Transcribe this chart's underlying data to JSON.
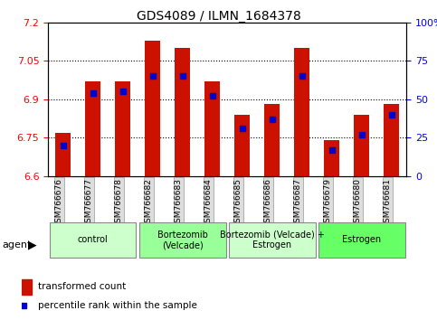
{
  "title": "GDS4089 / ILMN_1684378",
  "samples": [
    "GSM766676",
    "GSM766677",
    "GSM766678",
    "GSM766682",
    "GSM766683",
    "GSM766684",
    "GSM766685",
    "GSM766686",
    "GSM766687",
    "GSM766679",
    "GSM766680",
    "GSM766681"
  ],
  "red_values": [
    6.77,
    6.97,
    6.97,
    7.13,
    7.1,
    6.97,
    6.84,
    6.88,
    7.1,
    6.74,
    6.84,
    6.88
  ],
  "blue_percentiles": [
    20,
    54,
    55,
    65,
    65,
    52,
    31,
    37,
    65,
    17,
    27,
    40
  ],
  "y_min": 6.6,
  "y_max": 7.2,
  "y_ticks": [
    6.6,
    6.75,
    6.9,
    7.05,
    7.2
  ],
  "y_tick_labels": [
    "6.6",
    "6.75",
    "6.9",
    "7.05",
    "7.2"
  ],
  "right_y_ticks": [
    0,
    25,
    50,
    75,
    100
  ],
  "right_y_labels": [
    "0",
    "25",
    "50",
    "75",
    "100%"
  ],
  "groups": [
    {
      "label": "control",
      "start": 0,
      "end": 3,
      "color": "#ccffcc"
    },
    {
      "label": "Bortezomib\n(Velcade)",
      "start": 3,
      "end": 6,
      "color": "#99ff99"
    },
    {
      "label": "Bortezomib (Velcade) +\nEstrogen",
      "start": 6,
      "end": 9,
      "color": "#ccffcc"
    },
    {
      "label": "Estrogen",
      "start": 9,
      "end": 12,
      "color": "#66ff66"
    }
  ],
  "bar_color": "#cc1100",
  "blue_color": "#0000cc",
  "bar_base": 6.6,
  "bar_width": 0.5
}
